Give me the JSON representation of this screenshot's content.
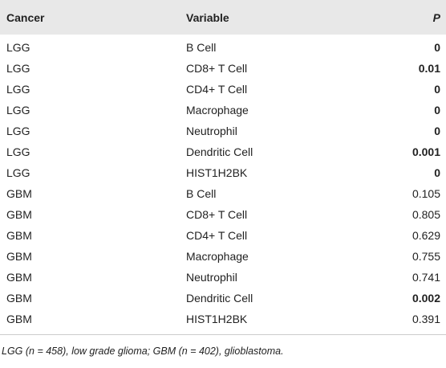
{
  "table": {
    "headers": {
      "cancer": "Cancer",
      "variable": "Variable",
      "p": "P"
    },
    "rows": [
      {
        "cancer": "LGG",
        "variable": "B Cell",
        "p": "0",
        "bold": true
      },
      {
        "cancer": "LGG",
        "variable": "CD8+ T Cell",
        "p": "0.01",
        "bold": true
      },
      {
        "cancer": "LGG",
        "variable": "CD4+ T Cell",
        "p": "0",
        "bold": true
      },
      {
        "cancer": "LGG",
        "variable": "Macrophage",
        "p": "0",
        "bold": true
      },
      {
        "cancer": "LGG",
        "variable": "Neutrophil",
        "p": "0",
        "bold": true
      },
      {
        "cancer": "LGG",
        "variable": "Dendritic Cell",
        "p": "0.001",
        "bold": true
      },
      {
        "cancer": "LGG",
        "variable": "HIST1H2BK",
        "p": "0",
        "bold": true
      },
      {
        "cancer": "GBM",
        "variable": "B Cell",
        "p": "0.105",
        "bold": false
      },
      {
        "cancer": "GBM",
        "variable": "CD8+ T Cell",
        "p": "0.805",
        "bold": false
      },
      {
        "cancer": "GBM",
        "variable": "CD4+ T Cell",
        "p": "0.629",
        "bold": false
      },
      {
        "cancer": "GBM",
        "variable": "Macrophage",
        "p": "0.755",
        "bold": false
      },
      {
        "cancer": "GBM",
        "variable": "Neutrophil",
        "p": "0.741",
        "bold": false
      },
      {
        "cancer": "GBM",
        "variable": "Dendritic Cell",
        "p": "0.002",
        "bold": true
      },
      {
        "cancer": "GBM",
        "variable": "HIST1H2BK",
        "p": "0.391",
        "bold": false
      }
    ]
  },
  "footnote": "LGG (n = 458), low grade glioma; GBM (n = 402), glioblastoma.",
  "colors": {
    "header_background": "#e8e8e8",
    "rule": "#cccccc",
    "text": "#222222"
  }
}
